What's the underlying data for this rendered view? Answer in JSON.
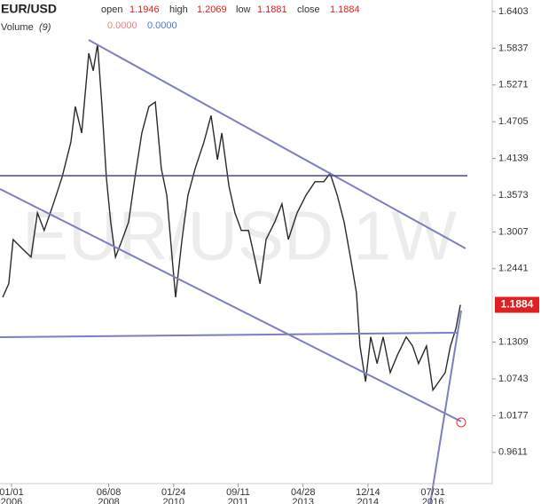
{
  "header": {
    "symbol": "EUR/USD",
    "open_label": "open",
    "open": 1.1946,
    "high_label": "high",
    "high": 1.2069,
    "low_label": "low",
    "low": 1.1881,
    "close_label": "close",
    "close": 1.1884,
    "volume_label": "Volume",
    "volume_period": "(9)",
    "volume_a": "0.0000",
    "volume_b": "0.0000"
  },
  "chart_data": {
    "type": "line",
    "watermark": "EUR/USD 1W",
    "color": "#2a2a2a",
    "x": [
      2005.78,
      2005.93,
      2006.04,
      2006.27,
      2006.49,
      2006.65,
      2006.82,
      2007.05,
      2007.27,
      2007.49,
      2007.6,
      2007.76,
      2007.94,
      2008.05,
      2008.16,
      2008.27,
      2008.38,
      2008.49,
      2008.61,
      2008.78,
      2008.94,
      2009.1,
      2009.27,
      2009.45,
      2009.61,
      2009.76,
      2009.9,
      2010.05,
      2010.12,
      2010.28,
      2010.43,
      2010.61,
      2010.83,
      2011.01,
      2011.17,
      2011.28,
      2011.46,
      2011.61,
      2011.77,
      2011.95,
      2012.1,
      2012.24,
      2012.39,
      2012.61,
      2012.79,
      2012.95,
      2013.17,
      2013.39,
      2013.62,
      2013.84,
      2014.0,
      2014.18,
      2014.35,
      2014.51,
      2014.66,
      2014.75,
      2014.89,
      2015.02,
      2015.18,
      2015.33,
      2015.51,
      2015.69,
      2015.91,
      2016.07,
      2016.22,
      2016.42,
      2016.58,
      2016.73,
      2016.89,
      2017.02,
      2017.16,
      2017.27
    ],
    "values": [
      1.2,
      1.221,
      1.289,
      1.275,
      1.262,
      1.33,
      1.303,
      1.344,
      1.385,
      1.439,
      1.494,
      1.453,
      1.576,
      1.549,
      1.59,
      1.494,
      1.385,
      1.316,
      1.262,
      1.289,
      1.316,
      1.385,
      1.453,
      1.494,
      1.501,
      1.398,
      1.357,
      1.248,
      1.2,
      1.289,
      1.357,
      1.398,
      1.439,
      1.48,
      1.412,
      1.453,
      1.371,
      1.33,
      1.303,
      1.303,
      1.262,
      1.221,
      1.289,
      1.316,
      1.344,
      1.289,
      1.33,
      1.357,
      1.378,
      1.378,
      1.391,
      1.357,
      1.316,
      1.262,
      1.207,
      1.125,
      1.07,
      1.139,
      1.098,
      1.139,
      1.084,
      1.111,
      1.139,
      1.125,
      1.098,
      1.125,
      1.057,
      1.07,
      1.084,
      1.125,
      1.152,
      1.1884
    ],
    "last": 1.1884,
    "xlim": [
      2005.71,
      2018.07
    ],
    "ylim": [
      0.913,
      1.658
    ],
    "yticks": [
      1.6403,
      1.5837,
      1.5271,
      1.4705,
      1.4139,
      1.3573,
      1.3007,
      1.2441,
      1.1309,
      1.0743,
      1.0177,
      0.9611
    ],
    "xticks": [
      {
        "value": 2006.0,
        "label": "01/01",
        "sublabel": "2006"
      },
      {
        "value": 2008.44,
        "label": "06/08",
        "sublabel": "2008"
      },
      {
        "value": 2010.07,
        "label": "01/24",
        "sublabel": "2010"
      },
      {
        "value": 2011.69,
        "label": "09/11",
        "sublabel": "2011"
      },
      {
        "value": 2013.32,
        "label": "04/28",
        "sublabel": "2013"
      },
      {
        "value": 2014.95,
        "label": "12/14",
        "sublabel": "2014"
      },
      {
        "value": 2016.58,
        "label": "07/31",
        "sublabel": "2016"
      }
    ]
  }
}
